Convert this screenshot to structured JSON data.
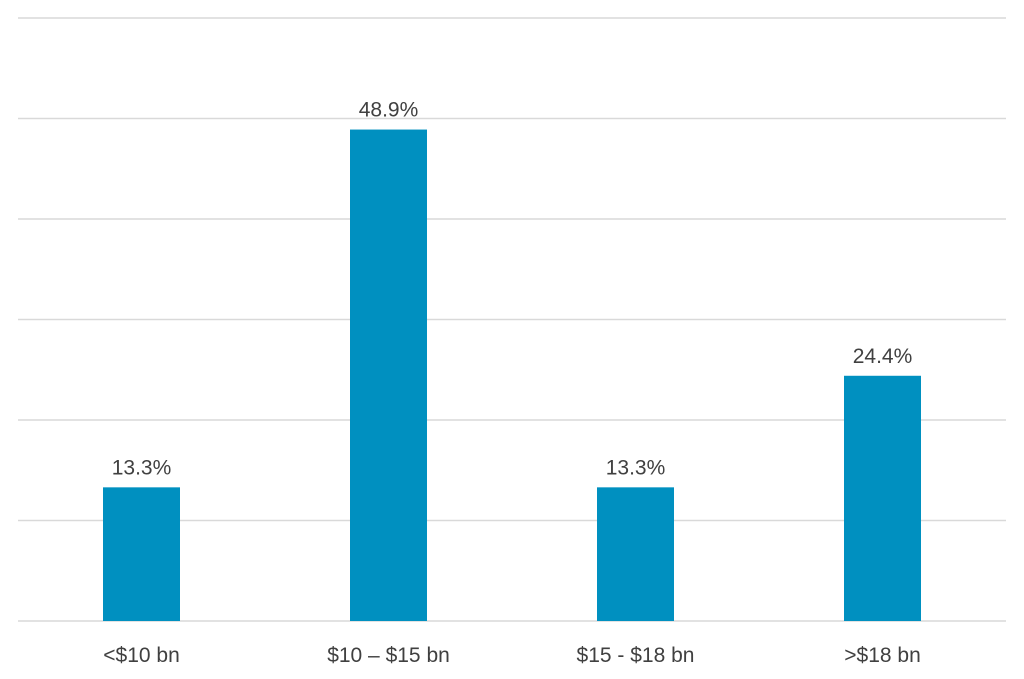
{
  "chart_data": {
    "type": "bar",
    "categories": [
      "<$10 bn",
      "$10 – $15 bn",
      "$15 - $18 bn",
      ">$18 bn"
    ],
    "values": [
      13.3,
      48.9,
      13.3,
      24.4
    ],
    "data_labels": [
      "13.3%",
      "48.9%",
      "13.3%",
      "24.4%"
    ],
    "title": "",
    "xlabel": "",
    "ylabel": "",
    "ylim": [
      0,
      60
    ],
    "grid": true,
    "gridline_step": 10,
    "y_tick_labels_shown": false,
    "legend": "none",
    "colors": {
      "bar": "#0090C0",
      "grid": "#D9D9D9",
      "text": "#404040"
    }
  }
}
